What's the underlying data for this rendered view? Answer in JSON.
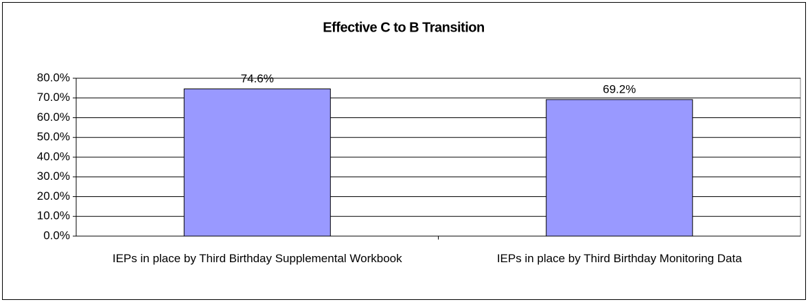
{
  "chart_data": {
    "type": "bar",
    "title": "Effective C to B Transition",
    "categories": [
      "IEPs in place by Third Birthday Supplemental Workbook",
      "IEPs in place by Third Birthday Monitoring Data"
    ],
    "values": [
      74.6,
      69.2
    ],
    "value_labels": [
      "74.6%",
      "69.2%"
    ],
    "color": "#9999ff",
    "ylim": [
      0,
      80
    ],
    "yticks": [
      {
        "value": 0,
        "label": "0.0%"
      },
      {
        "value": 10,
        "label": "10.0%"
      },
      {
        "value": 20,
        "label": "20.0%"
      },
      {
        "value": 30,
        "label": "30.0%"
      },
      {
        "value": 40,
        "label": "40.0%"
      },
      {
        "value": 50,
        "label": "50.0%"
      },
      {
        "value": 60,
        "label": "60.0%"
      },
      {
        "value": 70,
        "label": "70.0%"
      },
      {
        "value": 80,
        "label": "80.0%"
      }
    ],
    "grid": true
  }
}
